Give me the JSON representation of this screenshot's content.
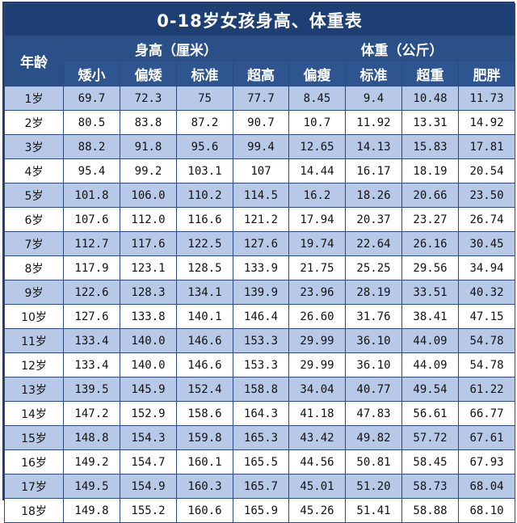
{
  "title": "0-18岁女孩身高、体重表",
  "header": {
    "age_label": "年龄",
    "height_group": "身高（厘米）",
    "weight_group": "体重（公斤）",
    "height_cols": [
      "矮小",
      "偏矮",
      "标准",
      "超高"
    ],
    "weight_cols": [
      "偏瘦",
      "标准",
      "超重",
      "肥胖"
    ]
  },
  "rows": [
    {
      "age": "1岁",
      "h": [
        "69.7",
        "72.3",
        "75",
        "77.7"
      ],
      "w": [
        "8.45",
        "9.4",
        "10.48",
        "11.73"
      ]
    },
    {
      "age": "2岁",
      "h": [
        "80.5",
        "83.8",
        "87.2",
        "90.7"
      ],
      "w": [
        "10.7",
        "11.92",
        "13.31",
        "14.92"
      ]
    },
    {
      "age": "3岁",
      "h": [
        "88.2",
        "91.8",
        "95.6",
        "99.4"
      ],
      "w": [
        "12.65",
        "14.13",
        "15.83",
        "17.81"
      ]
    },
    {
      "age": "4岁",
      "h": [
        "95.4",
        "99.2",
        "103.1",
        "107"
      ],
      "w": [
        "14.44",
        "16.17",
        "18.19",
        "20.54"
      ]
    },
    {
      "age": "5岁",
      "h": [
        "101.8",
        "106.0",
        "110.2",
        "114.5"
      ],
      "w": [
        "16.2",
        "18.26",
        "20.66",
        "23.50"
      ]
    },
    {
      "age": "6岁",
      "h": [
        "107.6",
        "112.0",
        "116.6",
        "121.2"
      ],
      "w": [
        "17.94",
        "20.37",
        "23.27",
        "26.74"
      ]
    },
    {
      "age": "7岁",
      "h": [
        "112.7",
        "117.6",
        "122.5",
        "127.6"
      ],
      "w": [
        "19.74",
        "22.64",
        "26.16",
        "30.45"
      ]
    },
    {
      "age": "8岁",
      "h": [
        "117.9",
        "123.1",
        "128.5",
        "133.9"
      ],
      "w": [
        "21.75",
        "25.25",
        "29.56",
        "34.94"
      ]
    },
    {
      "age": "9岁",
      "h": [
        "122.6",
        "128.3",
        "134.1",
        "139.9"
      ],
      "w": [
        "23.96",
        "28.19",
        "33.51",
        "40.32"
      ]
    },
    {
      "age": "10岁",
      "h": [
        "127.6",
        "133.8",
        "140.1",
        "146.4"
      ],
      "w": [
        "26.60",
        "31.76",
        "38.41",
        "47.15"
      ]
    },
    {
      "age": "11岁",
      "h": [
        "133.4",
        "140.0",
        "146.6",
        "153.3"
      ],
      "w": [
        "29.99",
        "36.10",
        "44.09",
        "54.78"
      ]
    },
    {
      "age": "12岁",
      "h": [
        "133.4",
        "140.0",
        "146.6",
        "153.3"
      ],
      "w": [
        "29.99",
        "36.10",
        "44.09",
        "54.78"
      ]
    },
    {
      "age": "13岁",
      "h": [
        "139.5",
        "145.9",
        "152.4",
        "158.8"
      ],
      "w": [
        "34.04",
        "40.77",
        "49.54",
        "61.22"
      ]
    },
    {
      "age": "14岁",
      "h": [
        "147.2",
        "152.9",
        "158.6",
        "164.3"
      ],
      "w": [
        "41.18",
        "47.83",
        "56.61",
        "66.77"
      ]
    },
    {
      "age": "15岁",
      "h": [
        "148.8",
        "154.3",
        "159.8",
        "165.3"
      ],
      "w": [
        "43.42",
        "49.82",
        "57.72",
        "67.61"
      ]
    },
    {
      "age": "16岁",
      "h": [
        "149.2",
        "154.7",
        "160.1",
        "165.5"
      ],
      "w": [
        "44.56",
        "50.81",
        "58.45",
        "67.93"
      ]
    },
    {
      "age": "17岁",
      "h": [
        "149.5",
        "154.9",
        "160.3",
        "165.7"
      ],
      "w": [
        "45.01",
        "51.20",
        "58.73",
        "68.04"
      ]
    },
    {
      "age": "18岁",
      "h": [
        "149.8",
        "155.2",
        "160.6",
        "165.9"
      ],
      "w": [
        "45.26",
        "51.41",
        "58.88",
        "68.10"
      ]
    }
  ]
}
